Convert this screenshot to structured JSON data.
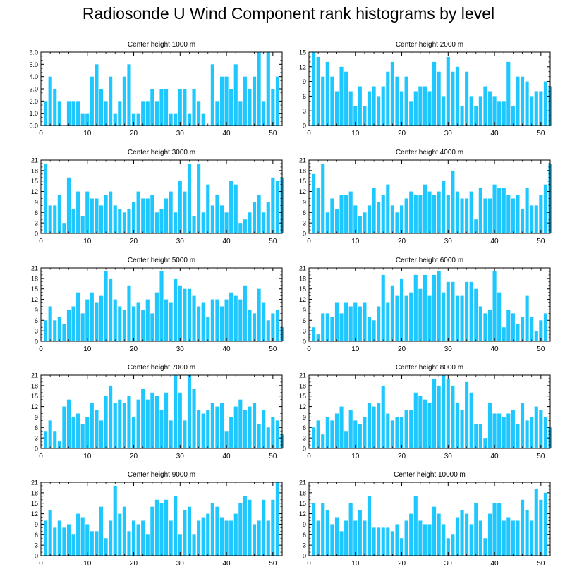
{
  "title": "Radiosonde U Wind Component rank histograms by level",
  "bar_color": "#1ec8ff",
  "chart_data": [
    {
      "type": "bar",
      "title": "Center height 1000 m",
      "xlim": [
        0,
        52
      ],
      "ylim": [
        0,
        6
      ],
      "xticks": [
        0,
        10,
        20,
        30,
        40,
        50
      ],
      "yticks": [
        0,
        1,
        2,
        3,
        4,
        5,
        6
      ],
      "ytick_labels": [
        "0.0",
        "1.0",
        "2.0",
        "3.0",
        "4.0",
        "5.0",
        "6.0"
      ],
      "values": [
        2,
        4,
        3,
        2,
        0,
        2,
        2,
        2,
        1,
        1,
        4,
        5,
        3,
        2,
        4,
        1,
        2,
        4,
        5,
        1,
        1,
        2,
        2,
        3,
        2,
        3,
        3,
        1,
        1,
        3,
        3,
        1,
        3,
        2,
        1,
        0,
        5,
        2,
        4,
        4,
        3,
        5,
        2,
        4,
        3,
        4,
        6,
        2,
        6,
        3,
        4
      ]
    },
    {
      "type": "bar",
      "title": "Center height 2000 m",
      "xlim": [
        0,
        52
      ],
      "ylim": [
        0,
        15
      ],
      "xticks": [
        0,
        10,
        20,
        30,
        40,
        50
      ],
      "yticks": [
        0,
        3,
        6,
        9,
        12,
        15
      ],
      "ytick_labels": [
        "0",
        "3",
        "6",
        "9",
        "12",
        "15"
      ],
      "values": [
        15,
        14,
        10,
        13,
        10,
        7,
        12,
        11,
        7,
        4,
        8,
        4,
        7,
        8,
        6,
        8,
        11,
        13,
        10,
        7,
        10,
        5,
        7,
        8,
        8,
        7,
        13,
        11,
        6,
        14,
        11,
        12,
        4,
        11,
        6,
        4,
        6,
        8,
        7,
        6,
        5,
        5,
        13,
        4,
        10,
        10,
        9,
        6,
        7,
        7,
        9,
        8
      ]
    },
    {
      "type": "bar",
      "title": "Center height 3000 m",
      "xlim": [
        0,
        52
      ],
      "ylim": [
        0,
        21
      ],
      "xticks": [
        0,
        10,
        20,
        30,
        40,
        50
      ],
      "yticks": [
        0,
        3,
        6,
        9,
        12,
        15,
        18,
        21
      ],
      "ytick_labels": [
        "0",
        "3",
        "6",
        "9",
        "12",
        "15",
        "18",
        "21"
      ],
      "values": [
        20,
        8,
        8,
        11,
        3,
        16,
        7,
        12,
        5,
        12,
        10,
        10,
        8,
        11,
        12,
        8,
        7,
        6,
        7,
        9,
        12,
        10,
        10,
        11,
        6,
        7,
        10,
        12,
        6,
        15,
        12,
        20,
        5,
        20,
        6,
        14,
        8,
        11,
        8,
        6,
        15,
        14,
        3,
        4,
        6,
        9,
        11,
        6,
        9,
        16,
        15,
        16
      ]
    },
    {
      "type": "bar",
      "title": "Center height 4000 m",
      "xlim": [
        0,
        52
      ],
      "ylim": [
        0,
        21
      ],
      "xticks": [
        0,
        10,
        20,
        30,
        40,
        50
      ],
      "yticks": [
        0,
        3,
        6,
        9,
        12,
        15,
        18,
        21
      ],
      "ytick_labels": [
        "0",
        "3",
        "6",
        "9",
        "12",
        "15",
        "18",
        "21"
      ],
      "values": [
        17,
        13,
        20,
        6,
        10,
        7,
        11,
        11,
        12,
        8,
        5,
        6,
        8,
        13,
        9,
        11,
        14,
        8,
        6,
        8,
        10,
        12,
        11,
        11,
        14,
        12,
        11,
        12,
        15,
        11,
        18,
        12,
        10,
        10,
        12,
        4,
        13,
        10,
        10,
        14,
        13,
        13,
        11,
        10,
        11,
        7,
        13,
        8,
        8,
        11,
        14,
        20
      ]
    },
    {
      "type": "bar",
      "title": "Center height 5000 m",
      "xlim": [
        0,
        52
      ],
      "ylim": [
        0,
        21
      ],
      "xticks": [
        0,
        10,
        20,
        30,
        40,
        50
      ],
      "yticks": [
        0,
        3,
        6,
        9,
        12,
        15,
        18,
        21
      ],
      "ytick_labels": [
        "0",
        "3",
        "6",
        "9",
        "12",
        "15",
        "18",
        "21"
      ],
      "values": [
        6,
        10,
        6,
        7,
        5,
        9,
        10,
        14,
        8,
        12,
        14,
        11,
        13,
        20,
        18,
        12,
        10,
        9,
        16,
        10,
        11,
        9,
        12,
        8,
        14,
        20,
        12,
        11,
        18,
        16,
        15,
        15,
        13,
        10,
        11,
        7,
        12,
        12,
        10,
        12,
        14,
        13,
        12,
        16,
        9,
        8,
        15,
        11,
        6,
        8,
        9,
        4
      ]
    },
    {
      "type": "bar",
      "title": "Center height 6000 m",
      "xlim": [
        0,
        52
      ],
      "ylim": [
        0,
        21
      ],
      "xticks": [
        0,
        10,
        20,
        30,
        40,
        50
      ],
      "yticks": [
        0,
        3,
        6,
        9,
        12,
        15,
        18,
        21
      ],
      "ytick_labels": [
        "0",
        "3",
        "6",
        "9",
        "12",
        "15",
        "18",
        "21"
      ],
      "values": [
        4,
        2,
        8,
        8,
        7,
        11,
        8,
        11,
        10,
        11,
        10,
        11,
        7,
        6,
        10,
        19,
        11,
        16,
        13,
        18,
        13,
        14,
        19,
        15,
        19,
        13,
        19,
        20,
        14,
        17,
        17,
        13,
        13,
        17,
        17,
        15,
        10,
        8,
        9,
        20,
        14,
        4,
        9,
        8,
        5,
        7,
        13,
        7,
        3,
        6,
        8
      ]
    },
    {
      "type": "bar",
      "title": "Center height 7000 m",
      "xlim": [
        0,
        52
      ],
      "ylim": [
        0,
        21
      ],
      "xticks": [
        0,
        10,
        20,
        30,
        40,
        50
      ],
      "yticks": [
        0,
        3,
        6,
        9,
        12,
        15,
        18,
        21
      ],
      "ytick_labels": [
        "0",
        "3",
        "6",
        "9",
        "12",
        "15",
        "18",
        "21"
      ],
      "values": [
        5,
        8,
        5,
        2,
        12,
        14,
        9,
        10,
        7,
        9,
        13,
        11,
        8,
        15,
        18,
        13,
        14,
        13,
        15,
        9,
        14,
        17,
        14,
        16,
        15,
        11,
        16,
        8,
        21,
        16,
        8,
        21,
        17,
        11,
        10,
        11,
        13,
        12,
        13,
        5,
        9,
        12,
        14,
        11,
        12,
        13,
        7,
        11,
        6,
        9,
        8,
        4
      ]
    },
    {
      "type": "bar",
      "title": "Center height 8000 m",
      "xlim": [
        0,
        52
      ],
      "ylim": [
        0,
        21
      ],
      "xticks": [
        0,
        10,
        20,
        30,
        40,
        50
      ],
      "yticks": [
        0,
        3,
        6,
        9,
        12,
        15,
        18,
        21
      ],
      "ytick_labels": [
        "0",
        "3",
        "6",
        "9",
        "12",
        "15",
        "18",
        "21"
      ],
      "values": [
        6,
        8,
        4,
        9,
        8,
        10,
        12,
        5,
        11,
        8,
        7,
        9,
        13,
        12,
        13,
        18,
        10,
        8,
        9,
        9,
        11,
        11,
        16,
        15,
        14,
        13,
        20,
        18,
        21,
        20,
        18,
        13,
        11,
        19,
        16,
        7,
        7,
        3,
        13,
        10,
        10,
        9,
        10,
        11,
        7,
        13,
        8,
        9,
        12,
        11,
        9,
        6
      ]
    },
    {
      "type": "bar",
      "title": "Center height 9000 m",
      "xlim": [
        0,
        52
      ],
      "ylim": [
        0,
        21
      ],
      "xticks": [
        0,
        10,
        20,
        30,
        40,
        50
      ],
      "yticks": [
        0,
        3,
        6,
        9,
        12,
        15,
        18,
        21
      ],
      "ytick_labels": [
        "0",
        "3",
        "6",
        "9",
        "12",
        "15",
        "18",
        "21"
      ],
      "values": [
        10,
        13,
        8,
        10,
        8,
        9,
        6,
        12,
        11,
        9,
        7,
        7,
        14,
        5,
        10,
        20,
        12,
        14,
        7,
        10,
        9,
        10,
        6,
        14,
        16,
        15,
        16,
        10,
        17,
        6,
        13,
        14,
        6,
        10,
        11,
        12,
        15,
        14,
        11,
        10,
        10,
        12,
        15,
        17,
        16,
        9,
        10,
        16,
        10,
        16,
        21
      ]
    },
    {
      "type": "bar",
      "title": "Center height 10000 m",
      "xlim": [
        0,
        52
      ],
      "ylim": [
        0,
        21
      ],
      "xticks": [
        0,
        10,
        20,
        30,
        40,
        50
      ],
      "yticks": [
        0,
        3,
        6,
        9,
        12,
        15,
        18,
        21
      ],
      "ytick_labels": [
        "0",
        "3",
        "6",
        "9",
        "12",
        "15",
        "18",
        "21"
      ],
      "values": [
        15,
        10,
        15,
        13,
        9,
        11,
        7,
        10,
        15,
        10,
        13,
        10,
        17,
        8,
        8,
        8,
        8,
        7,
        9,
        5,
        10,
        12,
        17,
        10,
        9,
        9,
        14,
        12,
        9,
        5,
        6,
        11,
        13,
        12,
        9,
        15,
        10,
        5,
        12,
        15,
        15,
        10,
        11,
        10,
        10,
        16,
        13,
        10,
        19,
        16,
        18
      ]
    }
  ]
}
